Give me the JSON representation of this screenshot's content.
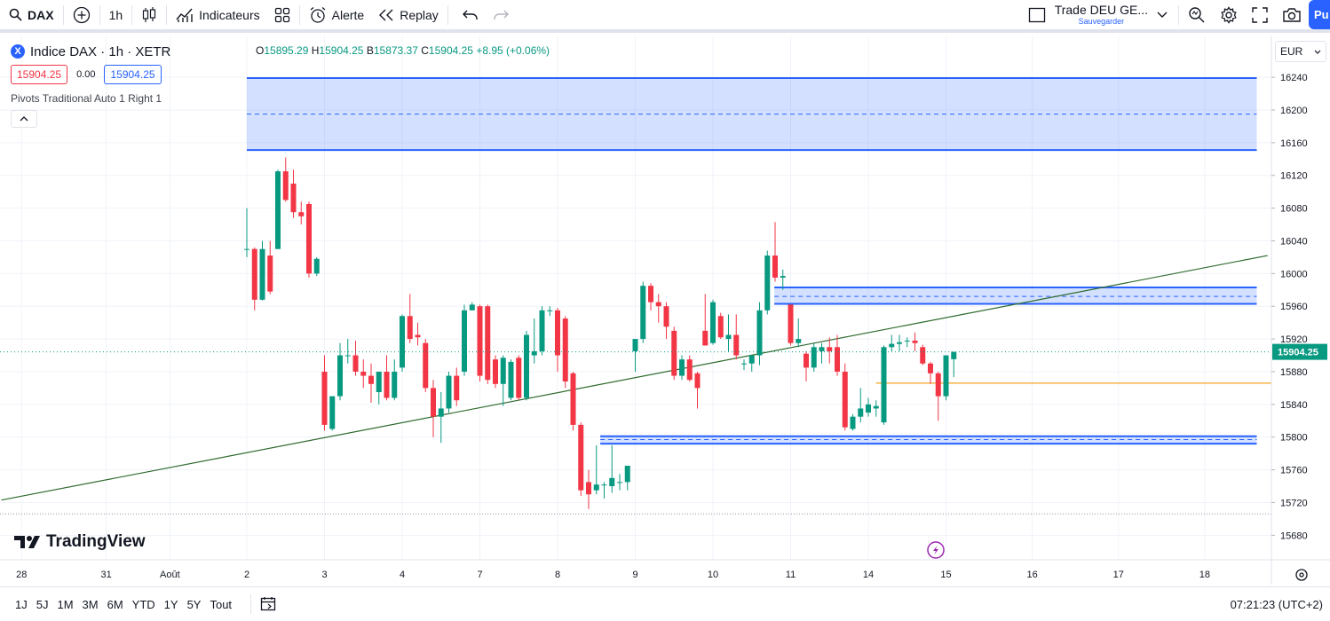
{
  "toolbar": {
    "symbol": "DAX",
    "interval": "1h",
    "indicators_label": "Indicateurs",
    "alert_label": "Alerte",
    "replay_label": "Replay",
    "layout_name": "Trade DEU GE...",
    "layout_save": "Sauvegarder",
    "publish_label": "Pu"
  },
  "legend": {
    "symbol_logo": "X",
    "title": "Indice DAX · 1h · XETR",
    "ohlc": {
      "o_label": "O",
      "o": "15895.29",
      "h_label": "H",
      "h": "15904.25",
      "l_label": "B",
      "l": "15873.37",
      "c_label": "C",
      "c": "15904.25",
      "change": "+8.95 (+0.06%)"
    },
    "bid": "15904.25",
    "spread": "0.00",
    "ask": "15904.25",
    "indicator": "Pivots Traditional Auto 1 Right 1"
  },
  "currency": "EUR",
  "brand": "TradingView",
  "bottom": {
    "ranges": [
      "1J",
      "5J",
      "1M",
      "3M",
      "6M",
      "YTD",
      "1Y",
      "5Y",
      "Tout"
    ],
    "clock": "07:21:23 (UTC+2)"
  },
  "colors": {
    "up": "#089981",
    "down": "#f23645",
    "zone": "#2962ff",
    "trend": "#2e6b2e",
    "level": "#f5a623"
  },
  "chart_data": {
    "type": "candlestick",
    "symbol": "Indice DAX",
    "interval": "1h",
    "ylim": [
      15650,
      16290
    ],
    "y_ticks": [
      15680,
      15720,
      15760,
      15800,
      15840,
      15880,
      15920,
      15960,
      16000,
      16040,
      16080,
      16120,
      16160,
      16200,
      16240
    ],
    "x_ticks": [
      {
        "label": "28",
        "bar": -29.0
      },
      {
        "label": "31",
        "bar": -18.1
      },
      {
        "label": "Août",
        "bar": -9.9
      },
      {
        "label": "2",
        "bar": 0.0
      },
      {
        "label": "3",
        "bar": 10.0
      },
      {
        "label": "4",
        "bar": 20.0
      },
      {
        "label": "7",
        "bar": 30.0
      },
      {
        "label": "8",
        "bar": 40.0
      },
      {
        "label": "9",
        "bar": 50.0
      },
      {
        "label": "10",
        "bar": 60.0
      },
      {
        "label": "11",
        "bar": 70.0
      },
      {
        "label": "14",
        "bar": 80.0
      },
      {
        "label": "15",
        "bar": 90.0
      },
      {
        "label": "16",
        "bar": 101.1
      },
      {
        "label": "17",
        "bar": 112.2
      },
      {
        "label": "18",
        "bar": 123.3
      }
    ],
    "last_price": 15904.25,
    "candles": [
      {
        "o": 16030,
        "h": 16080,
        "l": 16020,
        "c": 16030
      },
      {
        "o": 16030,
        "h": 16032,
        "l": 15955,
        "c": 15968
      },
      {
        "o": 15968,
        "h": 16040,
        "l": 15967,
        "c": 16030
      },
      {
        "o": 16022,
        "h": 16040,
        "l": 15975,
        "c": 15978
      },
      {
        "o": 16030,
        "h": 16127,
        "l": 16030,
        "c": 16125
      },
      {
        "o": 16125,
        "h": 16142,
        "l": 16088,
        "c": 16090
      },
      {
        "o": 16110,
        "h": 16127,
        "l": 16068,
        "c": 16075
      },
      {
        "o": 16075,
        "h": 16088,
        "l": 16060,
        "c": 16070
      },
      {
        "o": 16085,
        "h": 16088,
        "l": 15995,
        "c": 16000
      },
      {
        "o": 16000,
        "h": 16020,
        "l": 15997,
        "c": 16018
      },
      {
        "o": 15880,
        "h": 15900,
        "l": 15808,
        "c": 15815
      },
      {
        "o": 15810,
        "h": 15850,
        "l": 15808,
        "c": 15850
      },
      {
        "o": 15850,
        "h": 15915,
        "l": 15845,
        "c": 15900
      },
      {
        "o": 15900,
        "h": 15920,
        "l": 15890,
        "c": 15900
      },
      {
        "o": 15900,
        "h": 15918,
        "l": 15875,
        "c": 15880
      },
      {
        "o": 15880,
        "h": 15895,
        "l": 15860,
        "c": 15875
      },
      {
        "o": 15875,
        "h": 15890,
        "l": 15842,
        "c": 15865
      },
      {
        "o": 15855,
        "h": 15880,
        "l": 15840,
        "c": 15880
      },
      {
        "o": 15880,
        "h": 15900,
        "l": 15845,
        "c": 15848
      },
      {
        "o": 15848,
        "h": 15895,
        "l": 15845,
        "c": 15880
      },
      {
        "o": 15885,
        "h": 15950,
        "l": 15880,
        "c": 15948
      },
      {
        "o": 15948,
        "h": 15975,
        "l": 15915,
        "c": 15920
      },
      {
        "o": 15925,
        "h": 15940,
        "l": 15912,
        "c": 15922
      },
      {
        "o": 15915,
        "h": 15920,
        "l": 15855,
        "c": 15860
      },
      {
        "o": 15860,
        "h": 15870,
        "l": 15800,
        "c": 15825
      },
      {
        "o": 15825,
        "h": 15855,
        "l": 15793,
        "c": 15835
      },
      {
        "o": 15835,
        "h": 15880,
        "l": 15830,
        "c": 15875
      },
      {
        "o": 15875,
        "h": 15885,
        "l": 15838,
        "c": 15845
      },
      {
        "o": 15880,
        "h": 15962,
        "l": 15875,
        "c": 15955
      },
      {
        "o": 15955,
        "h": 15965,
        "l": 15955,
        "c": 15962
      },
      {
        "o": 15960,
        "h": 15962,
        "l": 15868,
        "c": 15875
      },
      {
        "o": 15960,
        "h": 15962,
        "l": 15865,
        "c": 15870
      },
      {
        "o": 15895,
        "h": 15900,
        "l": 15860,
        "c": 15865
      },
      {
        "o": 15865,
        "h": 15900,
        "l": 15838,
        "c": 15897
      },
      {
        "o": 15848,
        "h": 15895,
        "l": 15845,
        "c": 15892
      },
      {
        "o": 15897,
        "h": 15900,
        "l": 15845,
        "c": 15848
      },
      {
        "o": 15848,
        "h": 15930,
        "l": 15845,
        "c": 15925
      },
      {
        "o": 15900,
        "h": 15945,
        "l": 15890,
        "c": 15905
      },
      {
        "o": 15905,
        "h": 15960,
        "l": 15900,
        "c": 15955
      },
      {
        "o": 15955,
        "h": 15960,
        "l": 15948,
        "c": 15955
      },
      {
        "o": 15955,
        "h": 15958,
        "l": 15880,
        "c": 15900
      },
      {
        "o": 15945,
        "h": 15948,
        "l": 15860,
        "c": 15868
      },
      {
        "o": 15878,
        "h": 15880,
        "l": 15808,
        "c": 15815
      },
      {
        "o": 15815,
        "h": 15818,
        "l": 15728,
        "c": 15735
      },
      {
        "o": 15745,
        "h": 15760,
        "l": 15712,
        "c": 15730
      },
      {
        "o": 15735,
        "h": 15790,
        "l": 15730,
        "c": 15742
      },
      {
        "o": 15742,
        "h": 15745,
        "l": 15725,
        "c": 15742
      },
      {
        "o": 15740,
        "h": 15790,
        "l": 15732,
        "c": 15750
      },
      {
        "o": 15745,
        "h": 15755,
        "l": 15735,
        "c": 15745
      },
      {
        "o": 15745,
        "h": 15765,
        "l": 15735,
        "c": 15765
      },
      {
        "o": 15905,
        "h": 15920,
        "l": 15880,
        "c": 15920
      },
      {
        "o": 15920,
        "h": 15990,
        "l": 15915,
        "c": 15985
      },
      {
        "o": 15985,
        "h": 15988,
        "l": 15955,
        "c": 15965
      },
      {
        "o": 15965,
        "h": 15975,
        "l": 15940,
        "c": 15960
      },
      {
        "o": 15960,
        "h": 15965,
        "l": 15920,
        "c": 15935
      },
      {
        "o": 15930,
        "h": 15935,
        "l": 15870,
        "c": 15875
      },
      {
        "o": 15875,
        "h": 15900,
        "l": 15870,
        "c": 15895
      },
      {
        "o": 15895,
        "h": 15900,
        "l": 15868,
        "c": 15870
      },
      {
        "o": 15878,
        "h": 15880,
        "l": 15835,
        "c": 15860
      },
      {
        "o": 15930,
        "h": 15975,
        "l": 15912,
        "c": 15912
      },
      {
        "o": 15915,
        "h": 15968,
        "l": 15913,
        "c": 15965
      },
      {
        "o": 15948,
        "h": 15952,
        "l": 15920,
        "c": 15922
      },
      {
        "o": 15920,
        "h": 15950,
        "l": 15905,
        "c": 15925
      },
      {
        "o": 15925,
        "h": 15950,
        "l": 15895,
        "c": 15900
      },
      {
        "o": 15890,
        "h": 15895,
        "l": 15882,
        "c": 15890
      },
      {
        "o": 15890,
        "h": 15900,
        "l": 15880,
        "c": 15900
      },
      {
        "o": 15900,
        "h": 15965,
        "l": 15888,
        "c": 15955
      },
      {
        "o": 15955,
        "h": 16028,
        "l": 15950,
        "c": 16022
      },
      {
        "o": 16022,
        "h": 16063,
        "l": 15990,
        "c": 15995
      },
      {
        "o": 15995,
        "h": 16005,
        "l": 15980,
        "c": 15997
      },
      {
        "o": 15962,
        "h": 15962,
        "l": 15912,
        "c": 15915
      },
      {
        "o": 15915,
        "h": 15945,
        "l": 15910,
        "c": 15920
      },
      {
        "o": 15902,
        "h": 15905,
        "l": 15868,
        "c": 15885
      },
      {
        "o": 15885,
        "h": 15915,
        "l": 15880,
        "c": 15910
      },
      {
        "o": 15905,
        "h": 15915,
        "l": 15890,
        "c": 15910
      },
      {
        "o": 15910,
        "h": 15922,
        "l": 15890,
        "c": 15905
      },
      {
        "o": 15910,
        "h": 15925,
        "l": 15875,
        "c": 15880
      },
      {
        "o": 15880,
        "h": 15890,
        "l": 15808,
        "c": 15812
      },
      {
        "o": 15810,
        "h": 15828,
        "l": 15808,
        "c": 15825
      },
      {
        "o": 15825,
        "h": 15860,
        "l": 15818,
        "c": 15835
      },
      {
        "o": 15830,
        "h": 15848,
        "l": 15825,
        "c": 15840
      },
      {
        "o": 15835,
        "h": 15845,
        "l": 15825,
        "c": 15838
      },
      {
        "o": 15818,
        "h": 15912,
        "l": 15815,
        "c": 15910
      },
      {
        "o": 15910,
        "h": 15925,
        "l": 15905,
        "c": 15914
      },
      {
        "o": 15914,
        "h": 15925,
        "l": 15905,
        "c": 15916
      },
      {
        "o": 15918,
        "h": 15922,
        "l": 15910,
        "c": 15918
      },
      {
        "o": 15918,
        "h": 15928,
        "l": 15905,
        "c": 15915
      },
      {
        "o": 15910,
        "h": 15913,
        "l": 15888,
        "c": 15890
      },
      {
        "o": 15890,
        "h": 15892,
        "l": 15865,
        "c": 15878
      },
      {
        "o": 15878,
        "h": 15880,
        "l": 15820,
        "c": 15850
      },
      {
        "o": 15850,
        "h": 15900,
        "l": 15845,
        "c": 15900
      },
      {
        "o": 15895.29,
        "h": 15904.25,
        "l": 15873.37,
        "c": 15904.25
      }
    ],
    "pivot_zones": [
      {
        "from_bar": 0,
        "to_bar": 130,
        "top": 16239,
        "mid": 16195,
        "bottom": 16151
      },
      {
        "from_bar": 67.9,
        "to_bar": 130,
        "top": 15983,
        "mid": 15972,
        "bottom": 15963
      },
      {
        "from_bar": 45.5,
        "to_bar": 130,
        "top": 15801,
        "mid": 15797,
        "bottom": 15792
      }
    ],
    "trend_line": {
      "bar1": -31.6,
      "price1": 15723,
      "bar2": 131.4,
      "price2": 16022
    },
    "level_line": {
      "from_bar": 81,
      "to_bar": 130,
      "price": 15866
    }
  }
}
